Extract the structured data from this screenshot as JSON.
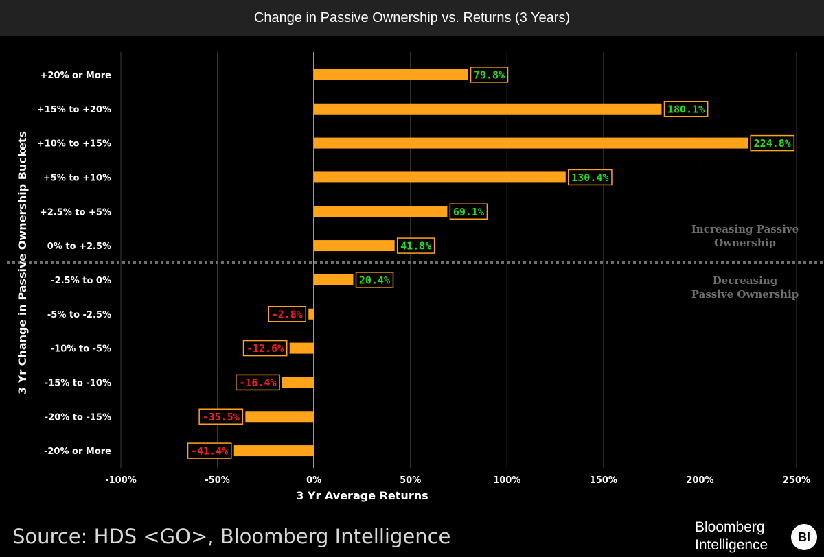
{
  "header": {
    "title": "Change in Passive Ownership vs. Returns (3 Years)"
  },
  "chart_data": {
    "type": "bar",
    "orientation": "horizontal",
    "xlabel": "3 Yr Average Returns",
    "ylabel": "3 Yr Change in Passive Ownership Buckets",
    "xlim": [
      -100,
      250
    ],
    "xticks": [
      -100,
      -50,
      0,
      50,
      100,
      150,
      200,
      250
    ],
    "xtick_labels": [
      "-100%",
      "-50%",
      "0%",
      "50%",
      "100%",
      "150%",
      "200%",
      "250%"
    ],
    "grid": "vertical",
    "categories": [
      "+20% or More",
      "+15% to +20%",
      "+10% to +15%",
      "+5% to +10%",
      "+2.5% to +5%",
      "0% to +2.5%",
      "-2.5% to 0%",
      "-5% to -2.5%",
      "-10% to -5%",
      "-15% to -10%",
      "-20% to -15%",
      "-20% or More"
    ],
    "values": [
      79.8,
      180.1,
      224.8,
      130.4,
      69.1,
      41.8,
      20.4,
      -2.8,
      -12.6,
      -16.4,
      -35.5,
      -41.4
    ],
    "value_labels": [
      "79.8%",
      "180.1%",
      "224.8%",
      "130.4%",
      "69.1%",
      "41.8%",
      "20.4%",
      "-2.8%",
      "-12.6%",
      "-16.4%",
      "-35.5%",
      "-41.4%"
    ],
    "annotations": [
      "Increasing Passive Ownership",
      "Decreasing Passive Ownership"
    ],
    "colors": {
      "bar": "#ffa31a",
      "positive_label": "#22dd22",
      "negative_label": "#ff1a1a",
      "label_border": "#ffa31a",
      "grid": "#3c3c3c",
      "divider": "#6e6e6e"
    }
  },
  "footer": {
    "source": "Source: HDS <GO>, Bloomberg Intelligence",
    "logo_line1": "Bloomberg",
    "logo_line2": "Intelligence",
    "logo_badge": "BI"
  }
}
